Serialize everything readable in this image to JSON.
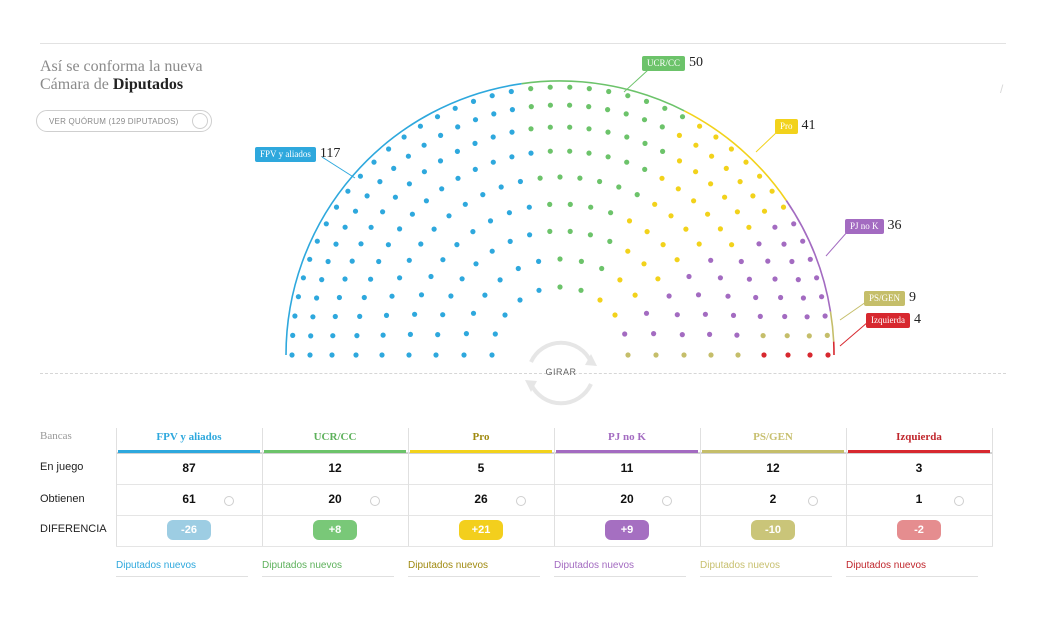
{
  "title": {
    "line1": "Así se conforma la nueva",
    "line2_pre": "Cámara de ",
    "line2_bold": "Diputados"
  },
  "quorum_button": "VER QUÓRUM (129 DIPUTADOS)",
  "rotate_label": "GIRAR",
  "chart_data": {
    "type": "parliament",
    "total_seats": 257,
    "rows": 9,
    "parties": [
      {
        "name": "FPV y aliados",
        "seats": 117,
        "color": "#2ea8dd"
      },
      {
        "name": "UCR/CC",
        "seats": 50,
        "color": "#6cc36a"
      },
      {
        "name": "Pro",
        "seats": 41,
        "color": "#f2d21b"
      },
      {
        "name": "PJ no K",
        "seats": 36,
        "color": "#a36bc1"
      },
      {
        "name": "PS/GEN",
        "seats": 9,
        "color": "#c5be6a"
      },
      {
        "name": "Izquierda",
        "seats": 4,
        "color": "#d7282f"
      }
    ]
  },
  "table": {
    "header_label": "Bancas",
    "row_labels": [
      "En juego",
      "Obtienen",
      "DIFERENCIA"
    ],
    "columns": [
      {
        "name": "FPV y aliados",
        "color": "#2ea8dd",
        "text_color": "#2ea8dd",
        "en_juego": "87",
        "obtienen": "61",
        "diferencia": "-26",
        "pill_color": "#9dcde3",
        "new_label": "Diputados nuevos"
      },
      {
        "name": "UCR/CC",
        "color": "#6cc36a",
        "text_color": "#5db15b",
        "en_juego": "12",
        "obtienen": "20",
        "diferencia": "+8",
        "pill_color": "#79c878",
        "new_label": "Diputados nuevos"
      },
      {
        "name": "Pro",
        "color": "#f2d21b",
        "text_color": "#a08a10",
        "en_juego": "5",
        "obtienen": "26",
        "diferencia": "+21",
        "pill_color": "#f3cf1d",
        "new_label": "Diputados nuevos"
      },
      {
        "name": "PJ no K",
        "color": "#a36bc1",
        "text_color": "#a36bc1",
        "en_juego": "11",
        "obtienen": "20",
        "diferencia": "+9",
        "pill_color": "#a56fc1",
        "new_label": "Diputados nuevos"
      },
      {
        "name": "PS/GEN",
        "color": "#c5be6a",
        "text_color": "#c8c070",
        "en_juego": "12",
        "obtienen": "2",
        "diferencia": "-10",
        "pill_color": "#cac579",
        "new_label": "Diputados nuevos"
      },
      {
        "name": "Izquierda",
        "color": "#d7282f",
        "text_color": "#c0262c",
        "en_juego": "3",
        "obtienen": "1",
        "diferencia": "-2",
        "pill_color": "#e58d8f",
        "new_label": "Diputados nuevos"
      }
    ]
  }
}
